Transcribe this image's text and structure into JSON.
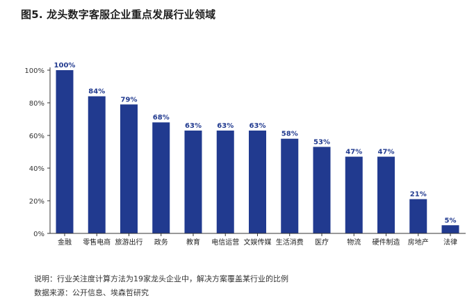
{
  "title": "图5. 龙头数字客服企业重点发展行业领域",
  "notes": {
    "explanation": "说明：行业关注度计算方法为19家龙头企业中，解决方案覆盖某行业的比例",
    "source": "数据来源：公开信息、埃森哲研究"
  },
  "colors": {
    "bar": "#213a8f",
    "label": "#213a8f",
    "axis": "#333333"
  },
  "chart_data": {
    "type": "bar",
    "title": "图5. 龙头数字客服企业重点发展行业领域",
    "xlabel": "",
    "ylabel": "",
    "ylim": [
      0,
      100
    ],
    "yticks": [
      0,
      20,
      40,
      60,
      80,
      100
    ],
    "ytick_labels": [
      "0%",
      "20%",
      "40%",
      "60%",
      "80%",
      "100%"
    ],
    "grid": false,
    "categories": [
      "金融",
      "零售电商",
      "旅游出行",
      "政务",
      "教育",
      "电信运营",
      "文娱传媒",
      "生活消费",
      "医疗",
      "物流",
      "硬件制造",
      "房地产",
      "法律"
    ],
    "values": [
      100,
      84,
      79,
      68,
      63,
      63,
      63,
      58,
      53,
      47,
      47,
      21,
      5
    ],
    "data_labels": [
      "100%",
      "84%",
      "79%",
      "68%",
      "63%",
      "63%",
      "63%",
      "58%",
      "53%",
      "47%",
      "47%",
      "21%",
      "5%"
    ]
  }
}
